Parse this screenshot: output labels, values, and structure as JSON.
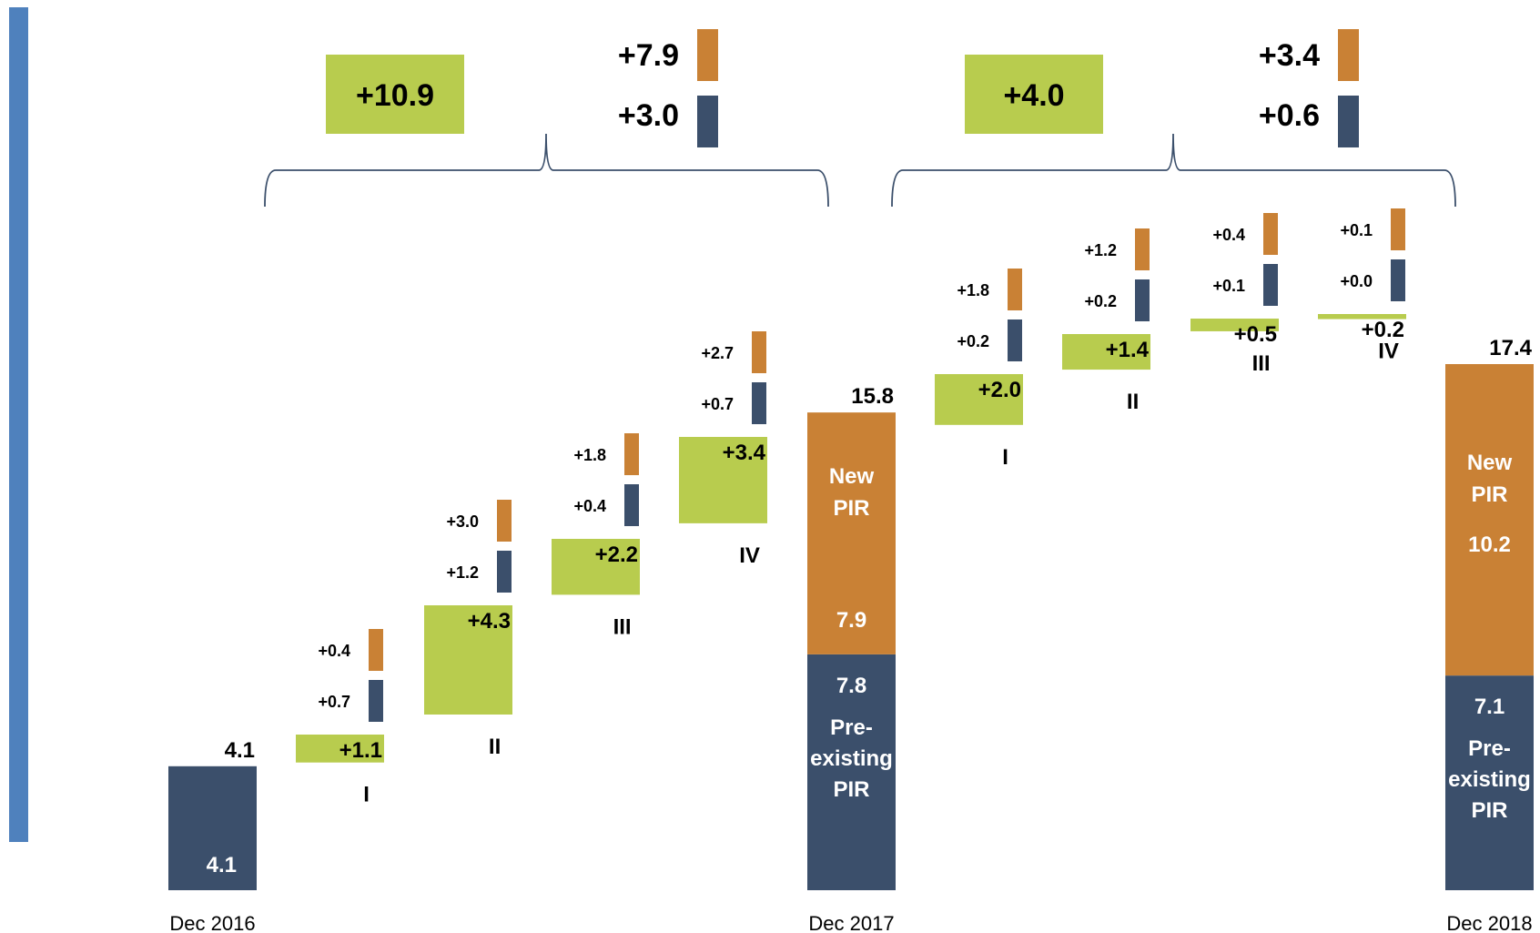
{
  "colors": {
    "sidebar": "#4F81BD",
    "green": "#B8CC4E",
    "orange": "#C98135",
    "navy": "#3B4F6B",
    "bracket": "#3B4F6B",
    "text": "#000000",
    "bar_text": "#FFFFFF"
  },
  "chart_data": {
    "type": "waterfall",
    "scale_max": 17.4,
    "anchors": [
      {
        "date": "Dec 2016",
        "total": 4.1,
        "total_label": "4.1",
        "preexisting": 4.1,
        "preexisting_value_label": "4.1",
        "new": 0
      },
      {
        "date": "Dec 2017",
        "total": 15.8,
        "total_label": "15.8",
        "preexisting": 7.8,
        "preexisting_value_label": "7.8",
        "preexisting_text": [
          "Pre-",
          "existing",
          "PIR"
        ],
        "new": 7.9,
        "new_value_label": "7.9",
        "new_text": [
          "New",
          "PIR"
        ]
      },
      {
        "date": "Dec 2018",
        "total": 17.4,
        "total_label": "17.4",
        "preexisting": 7.1,
        "preexisting_value_label": "7.1",
        "preexisting_text": [
          "Pre-",
          "existing",
          "PIR"
        ],
        "new": 10.2,
        "new_value_label": "10.2",
        "new_text": [
          "New",
          "PIR"
        ]
      }
    ],
    "quarters": [
      {
        "quarter": "I",
        "year": 2017,
        "base": 4.1,
        "green": 1.1,
        "green_label": "+1.1",
        "navy_label": "+0.7",
        "orange_label": "+0.4",
        "navy": 0.7,
        "orange": 0.4
      },
      {
        "quarter": "II",
        "year": 2017,
        "base": 5.2,
        "green": 4.3,
        "green_label": "+4.3",
        "navy_label": "+1.2",
        "orange_label": "+3.0",
        "navy": 1.2,
        "orange": 3.0
      },
      {
        "quarter": "III",
        "year": 2017,
        "base": 9.5,
        "green": 2.2,
        "green_label": "+2.2",
        "navy_label": "+0.4",
        "orange_label": "+1.8",
        "navy": 0.4,
        "orange": 1.8
      },
      {
        "quarter": "IV",
        "year": 2017,
        "base": 11.7,
        "green": 3.4,
        "green_label": "+3.4",
        "navy_label": "+0.7",
        "orange_label": "+2.7",
        "navy": 0.7,
        "orange": 2.7
      },
      {
        "quarter": "I",
        "year": 2018,
        "base": 15.8,
        "green": 2.0,
        "green_label": "+2.0",
        "navy_label": "+0.2",
        "orange_label": "+1.8",
        "navy": 0.2,
        "orange": 1.8
      },
      {
        "quarter": "II",
        "year": 2018,
        "base": 17.8,
        "green": 1.4,
        "green_label": "+1.4",
        "navy_label": "+0.2",
        "orange_label": "+1.2",
        "navy": 0.2,
        "orange": 1.2
      },
      {
        "quarter": "III",
        "year": 2018,
        "base": 19.2,
        "green": 0.5,
        "green_label": "+0.5",
        "navy_label": "+0.1",
        "orange_label": "+0.4",
        "navy": 0.1,
        "orange": 0.4
      },
      {
        "quarter": "IV",
        "year": 2018,
        "base": 19.7,
        "green": 0.2,
        "green_label": "+0.2",
        "navy_label": "+0.0",
        "orange_label": "+0.1",
        "navy": 0.0,
        "orange": 0.1
      }
    ],
    "summaries": [
      {
        "year": 2017,
        "total_label": "+10.9",
        "orange_label": "+7.9",
        "navy_label": "+3.0"
      },
      {
        "year": 2018,
        "total_label": "+4.0",
        "orange_label": "+3.4",
        "navy_label": "+0.6"
      }
    ]
  }
}
